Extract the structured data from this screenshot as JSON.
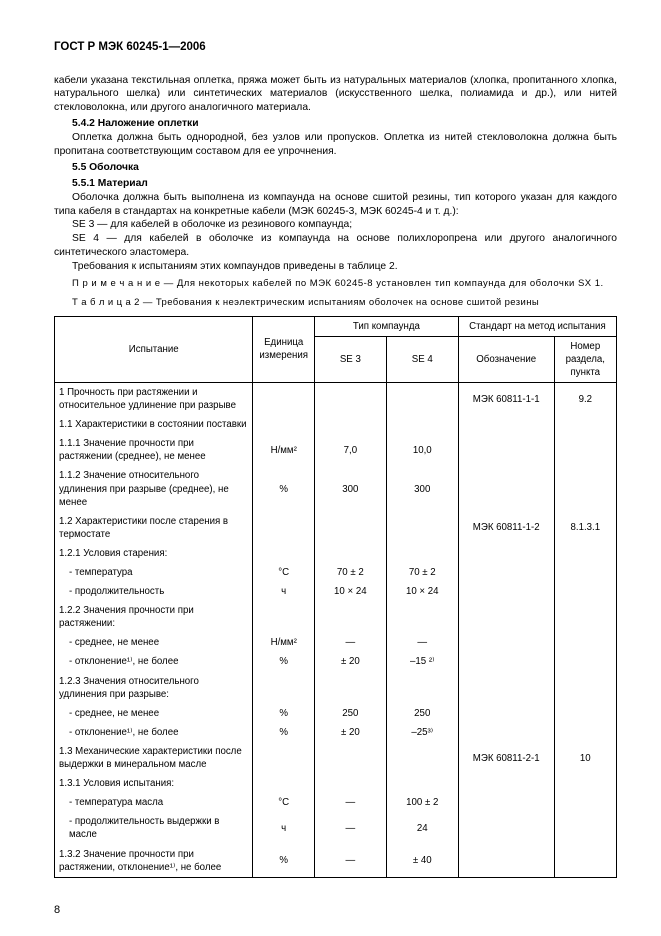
{
  "header": "ГОСТ Р МЭК 60245-1—2006",
  "paragraphs": {
    "p1": "кабели указана текстильная оплетка, пряжа может быть из натуральных материалов (хлопка, пропитанного хлопка, натурального шелка) или синтетических материалов (искусственного шелка, полиамида и др.), или нитей стекловолокна, или другого аналогичного материала.",
    "h542": "5.4.2  Наложение оплетки",
    "p2": "Оплетка должна быть однородной, без узлов или пропусков. Оплетка из нитей стекловолокна должна быть пропитана соответствующим составом для ее упрочнения.",
    "h55": "5.5  Оболочка",
    "h551": "5.5.1  Материал",
    "p3": "Оболочка должна быть выполнена из компаунда на основе сшитой резины, тип которого указан для каждого типа кабеля в стандартах на конкретные кабели (МЭК 60245-3, МЭК 60245-4 и т. д.):",
    "p4": "SE 3 — для кабелей в оболочке из резинового компаунда;",
    "p5": "SE 4 — для кабелей в оболочке из компаунда на основе полихлоропрена или другого аналогичного синтетического эластомера.",
    "p6": "Требования к испытаниям этих компаундов приведены в таблице 2.",
    "note": "П р и м е ч а н и е — Для некоторых кабелей по МЭК 60245-8 установлен тип компаунда для оболочки SX 1.",
    "tcap": "Т а б л и ц а   2 — Требования к неэлектрическим испытаниям оболочек на основе сшитой резины"
  },
  "table": {
    "head": {
      "test": "Испытание",
      "unit": "Единица измерения",
      "compound": "Тип компаунда",
      "se3": "SE 3",
      "se4": "SE 4",
      "stdmethod": "Стандарт на метод испытания",
      "std": "Обозначение",
      "sec": "Номер раздела, пункта"
    },
    "rows": [
      {
        "test": "1 Прочность при растяжении и относительное удлинение при разрыве",
        "unit": "",
        "se3": "",
        "se4": "",
        "std": "МЭК 60811-1-1",
        "sec": "9.2"
      },
      {
        "test": "1.1 Характеристики в состоянии поставки",
        "unit": "",
        "se3": "",
        "se4": "",
        "std": "",
        "sec": ""
      },
      {
        "test": "1.1.1 Значение прочности при растяжении (среднее), не менее",
        "unit": "Н/мм²",
        "se3": "7,0",
        "se4": "10,0",
        "std": "",
        "sec": ""
      },
      {
        "test": "1.1.2 Значение относительного удлинения при разрыве (среднее), не менее",
        "unit": "%",
        "se3": "300",
        "se4": "300",
        "std": "",
        "sec": ""
      },
      {
        "test": "1.2 Характеристики после старения в термостате",
        "unit": "",
        "se3": "",
        "se4": "",
        "std": "МЭК 60811-1-2",
        "sec": "8.1.3.1"
      },
      {
        "test": "1.2.1 Условия старения:",
        "unit": "",
        "se3": "",
        "se4": "",
        "std": "",
        "sec": ""
      },
      {
        "test": "- температура",
        "unit": "°C",
        "se3": "70 ± 2",
        "se4": "70 ± 2",
        "std": "",
        "sec": "",
        "sub": true
      },
      {
        "test": "- продолжительность",
        "unit": "ч",
        "se3": "10 × 24",
        "se4": "10 × 24",
        "std": "",
        "sec": "",
        "sub": true
      },
      {
        "test": "1.2.2 Значения прочности при растяжении:",
        "unit": "",
        "se3": "",
        "se4": "",
        "std": "",
        "sec": ""
      },
      {
        "test": "- среднее, не менее",
        "unit": "Н/мм²",
        "se3": "—",
        "se4": "—",
        "std": "",
        "sec": "",
        "sub": true
      },
      {
        "test": "- отклонение¹⁾, не более",
        "unit": "%",
        "se3": "± 20",
        "se4": "–15 ²⁾",
        "std": "",
        "sec": "",
        "sub": true
      },
      {
        "test": "1.2.3 Значения относительного удлинения при разрыве:",
        "unit": "",
        "se3": "",
        "se4": "",
        "std": "",
        "sec": ""
      },
      {
        "test": "- среднее, не менее",
        "unit": "%",
        "se3": "250",
        "se4": "250",
        "std": "",
        "sec": "",
        "sub": true
      },
      {
        "test": "- отклонение¹⁾, не более",
        "unit": "%",
        "se3": "± 20",
        "se4": "–25³⁾",
        "std": "",
        "sec": "",
        "sub": true
      },
      {
        "test": "1.3 Механические характеристики после выдержки в минеральном масле",
        "unit": "",
        "se3": "",
        "se4": "",
        "std": "МЭК 60811-2-1",
        "sec": "10"
      },
      {
        "test": "1.3.1 Условия испытания:",
        "unit": "",
        "se3": "",
        "se4": "",
        "std": "",
        "sec": ""
      },
      {
        "test": "- температура масла",
        "unit": "°C",
        "se3": "—",
        "se4": "100 ± 2",
        "std": "",
        "sec": "",
        "sub": true
      },
      {
        "test": "- продолжительность выдержки в масле",
        "unit": "ч",
        "se3": "—",
        "se4": "24",
        "std": "",
        "sec": "",
        "sub": true
      },
      {
        "test": "1.3.2 Значение прочности при растяжении, отклонение¹⁾, не более",
        "unit": "%",
        "se3": "—",
        "se4": "± 40",
        "std": "",
        "sec": ""
      }
    ]
  },
  "pageNumber": "8"
}
